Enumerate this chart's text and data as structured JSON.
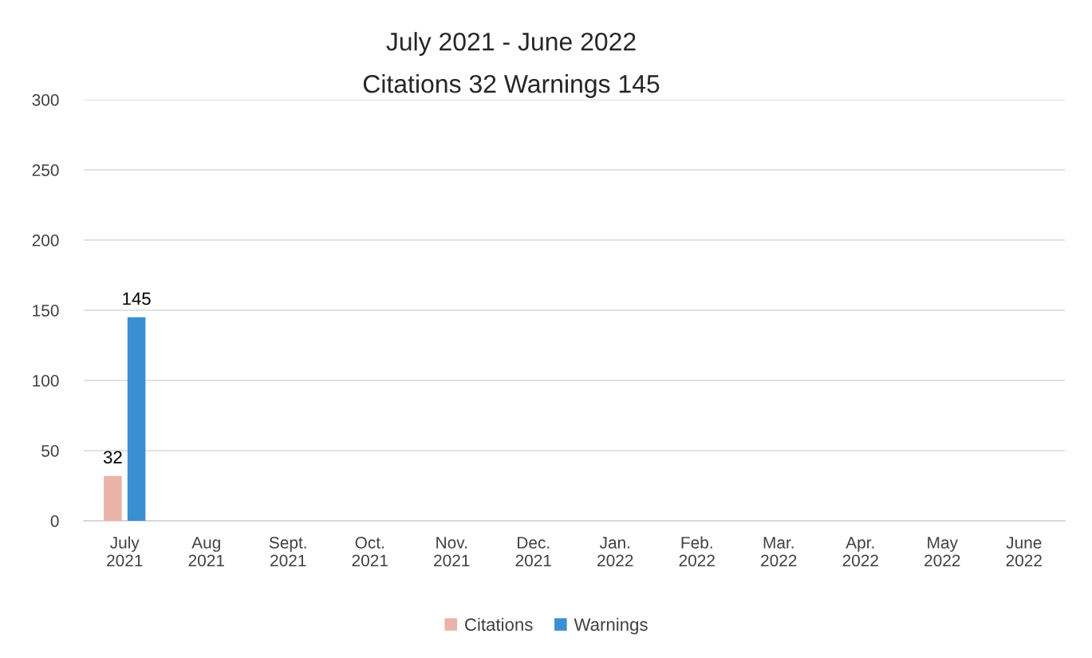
{
  "chart_data": {
    "type": "bar",
    "title": "July 2021 - June 2022",
    "subtitle": "Citations 32 Warnings 145",
    "categories": [
      "July\n2021",
      "Aug\n2021",
      "Sept.\n2021",
      "Oct.\n2021",
      "Nov.\n2021",
      "Dec.\n2021",
      "Jan.\n2022",
      "Feb.\n2022",
      "Mar.\n2022",
      "Apr.\n2022",
      "May\n2022",
      "June\n2022"
    ],
    "series": [
      {
        "name": "Citations",
        "color": "#eab3a9",
        "values": [
          32,
          null,
          null,
          null,
          null,
          null,
          null,
          null,
          null,
          null,
          null,
          null
        ]
      },
      {
        "name": "Warnings",
        "color": "#3a8fd3",
        "values": [
          145,
          null,
          null,
          null,
          null,
          null,
          null,
          null,
          null,
          null,
          null,
          null
        ]
      }
    ],
    "ylim": [
      0,
      300
    ],
    "yticks": [
      0,
      50,
      100,
      150,
      200,
      250,
      300
    ],
    "grid": "y",
    "legend": "bottom",
    "data_labels": true
  }
}
